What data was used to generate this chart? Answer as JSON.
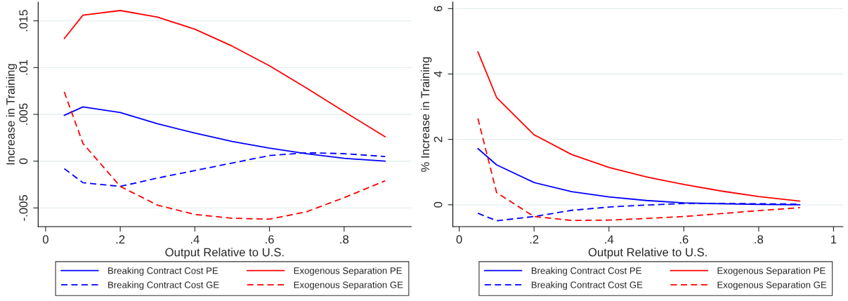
{
  "chart_data": [
    {
      "type": "line",
      "xlabel": "Output Relative to U.S.",
      "ylabel": "Increase in Training",
      "x": [
        0.05,
        0.1,
        0.2,
        0.3,
        0.4,
        0.5,
        0.6,
        0.7,
        0.8,
        0.91
      ],
      "xlim": [
        -0.02,
        0.98
      ],
      "xticks": [
        0,
        {
          "value": 0.2,
          "label": ".2"
        },
        {
          "value": 0.4,
          "label": ".4"
        },
        {
          "value": 0.6,
          "label": ".6"
        },
        {
          "value": 0.8,
          "label": ".8"
        }
      ],
      "ylim": [
        -0.007,
        0.017
      ],
      "yticks": [
        {
          "value": -0.005,
          "label": "-.005"
        },
        0,
        {
          "value": 0.005,
          "label": ".005"
        },
        {
          "value": 0.01,
          "label": ".01"
        },
        {
          "value": 0.015,
          "label": ".015"
        }
      ],
      "grid": "y",
      "legend": "bottom",
      "series": [
        {
          "name": "Breaking Contract Cost PE",
          "color": "#0000ff",
          "line_style": "solid",
          "values": [
            0.0049,
            0.0058,
            0.0052,
            0.004,
            0.003,
            0.0021,
            0.0014,
            0.0008,
            0.0003,
            0.0
          ]
        },
        {
          "name": "Exogenous Separation PE",
          "color": "#ff0000",
          "line_style": "solid",
          "values": [
            0.0131,
            0.0156,
            0.0161,
            0.0154,
            0.0141,
            0.0123,
            0.0102,
            0.0078,
            0.0053,
            0.0026
          ]
        },
        {
          "name": "Breaking Contract Cost GE",
          "color": "#0000ff",
          "line_style": "dashed",
          "values": [
            -0.0008,
            -0.0023,
            -0.0027,
            -0.0018,
            -0.001,
            -0.0002,
            0.0006,
            0.0009,
            0.0008,
            0.0005
          ]
        },
        {
          "name": "Exogenous Separation GE",
          "color": "#ff0000",
          "line_style": "dashed",
          "values": [
            0.0074,
            0.0019,
            -0.0027,
            -0.0047,
            -0.0057,
            -0.0061,
            -0.0062,
            -0.0054,
            -0.0039,
            -0.0021
          ]
        }
      ]
    },
    {
      "type": "line",
      "xlabel": "Output Relative to U.S.",
      "ylabel": "% Increase in Training",
      "x": [
        0.05,
        0.1,
        0.2,
        0.3,
        0.4,
        0.5,
        0.6,
        0.7,
        0.8,
        0.91
      ],
      "xlim": [
        -0.017,
        1.025
      ],
      "xticks": [
        0,
        {
          "value": 0.2,
          "label": ".2"
        },
        {
          "value": 0.4,
          "label": ".4"
        },
        {
          "value": 0.6,
          "label": ".6"
        },
        {
          "value": 0.8,
          "label": ".8"
        },
        1
      ],
      "ylim": [
        -0.67,
        6.2
      ],
      "yticks": [
        0,
        2,
        4,
        6
      ],
      "grid": "y",
      "legend": "bottom",
      "series": [
        {
          "name": "Breaking Contract Cost PE",
          "color": "#0000ff",
          "line_style": "solid",
          "values": [
            1.72,
            1.22,
            0.68,
            0.4,
            0.24,
            0.13,
            0.06,
            0.03,
            0.01,
            0.0
          ]
        },
        {
          "name": "Exogenous Separation PE",
          "color": "#ff0000",
          "line_style": "solid",
          "values": [
            4.68,
            3.28,
            2.14,
            1.54,
            1.14,
            0.85,
            0.62,
            0.42,
            0.25,
            0.11
          ]
        },
        {
          "name": "Breaking Contract Cost GE",
          "color": "#0000ff",
          "line_style": "dashed",
          "values": [
            -0.26,
            -0.49,
            -0.36,
            -0.17,
            -0.07,
            -0.01,
            0.04,
            0.04,
            0.03,
            0.02
          ]
        },
        {
          "name": "Exogenous Separation GE",
          "color": "#ff0000",
          "line_style": "dashed",
          "values": [
            2.64,
            0.37,
            -0.36,
            -0.48,
            -0.47,
            -0.42,
            -0.36,
            -0.27,
            -0.18,
            -0.09
          ]
        }
      ]
    }
  ]
}
